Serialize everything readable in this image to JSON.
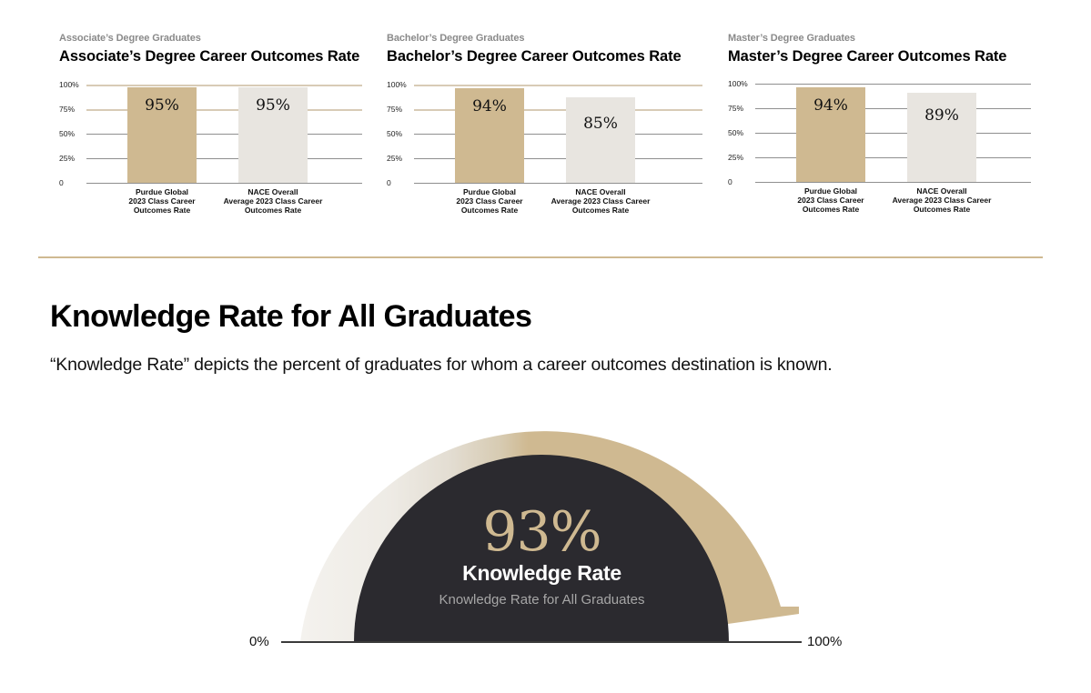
{
  "panels": [
    {
      "kicker": "Associate’s Degree Graduates",
      "title": "Associate’s Degree Career Outcomes Rate",
      "bars": [
        {
          "label_lines": [
            "Purdue Global",
            "2023 Class Career",
            "Outcomes Rate"
          ],
          "value": 95,
          "value_label": "95%"
        },
        {
          "label_lines": [
            "NACE Overall",
            "Average 2023 Class Career",
            "Outcomes Rate"
          ],
          "value": 95,
          "value_label": "95%"
        }
      ]
    },
    {
      "kicker": "Bachelor’s Degree Graduates",
      "title": "Bachelor’s Degree Career Outcomes Rate",
      "bars": [
        {
          "label_lines": [
            "Purdue Global",
            "2023 Class Career",
            "Outcomes Rate"
          ],
          "value": 94,
          "value_label": "94%"
        },
        {
          "label_lines": [
            "NACE Overall",
            "Average 2023 Class Career",
            "Outcomes Rate"
          ],
          "value": 85,
          "value_label": "85%"
        }
      ]
    },
    {
      "kicker": "Master’s Degree Graduates",
      "title": "Master’s Degree Career Outcomes Rate",
      "bars": [
        {
          "label_lines": [
            "Purdue Global",
            "2023 Class Career",
            "Outcomes Rate"
          ],
          "value": 94,
          "value_label": "94%"
        },
        {
          "label_lines": [
            "NACE Overall",
            "Average 2023 Class Career",
            "Outcomes Rate"
          ],
          "value": 89,
          "value_label": "89%"
        }
      ]
    }
  ],
  "y_ticks": [
    "100%",
    "75%",
    "50%",
    "25%",
    "0"
  ],
  "knowledge": {
    "title": "Knowledge Rate for All Graduates",
    "description": "“Knowledge Rate” depicts the percent of graduates for whom a career outcomes destination is known.",
    "value": 93,
    "value_label": "93%",
    "name": "Knowledge Rate",
    "subtitle": "Knowledge Rate for All Graduates",
    "min_label": "0%",
    "max_label": "100%"
  },
  "colors": {
    "gold": "#cfb991",
    "light_gray": "#e8e5e0",
    "dark": "#2b2a2f",
    "divider": "#cfb991"
  },
  "chart_data": [
    {
      "type": "bar",
      "title": "Associate’s Degree Career Outcomes Rate",
      "subtitle": "Associate’s Degree Graduates",
      "categories": [
        "Purdue Global 2023 Class Career Outcomes Rate",
        "NACE Overall Average 2023 Class Career Outcomes Rate"
      ],
      "values": [
        95,
        95
      ],
      "xlabel": "",
      "ylabel": "",
      "ylim": [
        0,
        100
      ],
      "yticks": [
        "0",
        "25%",
        "50%",
        "75%",
        "100%"
      ],
      "grid": true
    },
    {
      "type": "bar",
      "title": "Bachelor’s Degree Career Outcomes Rate",
      "subtitle": "Bachelor’s Degree Graduates",
      "categories": [
        "Purdue Global 2023 Class Career Outcomes Rate",
        "NACE Overall Average 2023 Class Career Outcomes Rate"
      ],
      "values": [
        94,
        85
      ],
      "xlabel": "",
      "ylabel": "",
      "ylim": [
        0,
        100
      ],
      "yticks": [
        "0",
        "25%",
        "50%",
        "75%",
        "100%"
      ],
      "grid": true
    },
    {
      "type": "bar",
      "title": "Master’s Degree Career Outcomes Rate",
      "subtitle": "Master’s Degree Graduates",
      "categories": [
        "Purdue Global 2023 Class Career Outcomes Rate",
        "NACE Overall Average 2023 Class Career Outcomes Rate"
      ],
      "values": [
        94,
        89
      ],
      "xlabel": "",
      "ylabel": "",
      "ylim": [
        0,
        100
      ],
      "yticks": [
        "0",
        "25%",
        "50%",
        "75%",
        "100%"
      ],
      "grid": true
    },
    {
      "type": "gauge",
      "title": "Knowledge Rate for All Graduates",
      "value": 93,
      "range": [
        0,
        100
      ],
      "labels": [
        "0%",
        "100%"
      ],
      "annotation": "Knowledge Rate"
    }
  ]
}
